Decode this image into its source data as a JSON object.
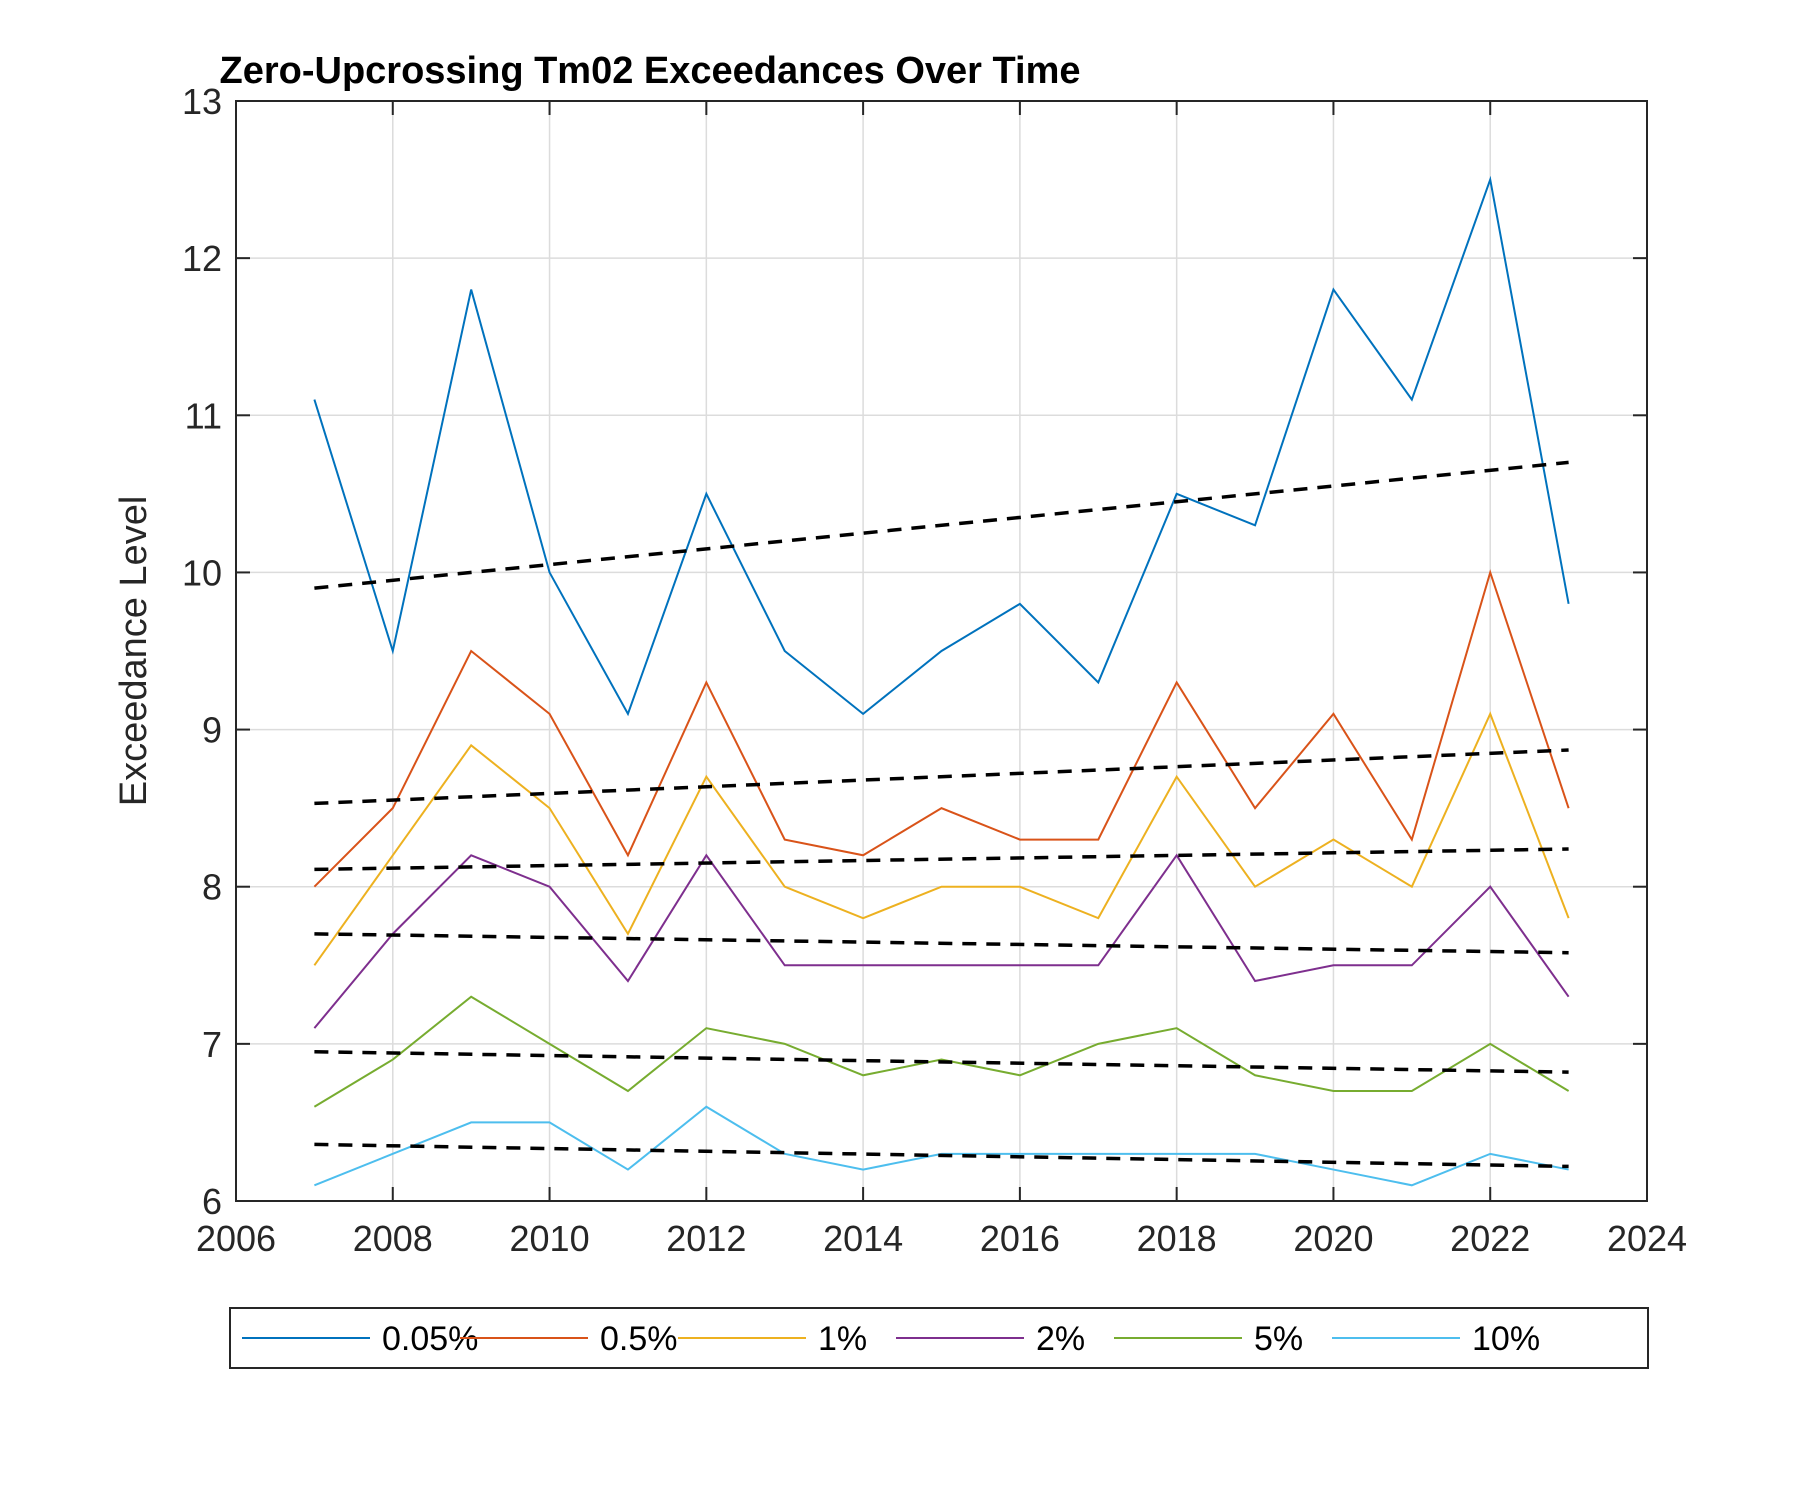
{
  "chart_data": {
    "type": "line",
    "title": "Zero-Upcrossing Tm02 Exceedances Over Time",
    "xlabel": "",
    "ylabel": "Exceedance Level",
    "xlim": [
      2006,
      2024
    ],
    "ylim": [
      6,
      13
    ],
    "x_ticks": [
      "2006",
      "2008",
      "2010",
      "2012",
      "2014",
      "2016",
      "2018",
      "2020",
      "2022",
      "2024"
    ],
    "y_ticks": [
      "6",
      "7",
      "8",
      "9",
      "10",
      "11",
      "12",
      "13"
    ],
    "grid": true,
    "legend_position": "bottom",
    "x": [
      2007,
      2008,
      2009,
      2010,
      2011,
      2012,
      2013,
      2014,
      2015,
      2016,
      2017,
      2018,
      2019,
      2020,
      2021,
      2022,
      2023
    ],
    "series": [
      {
        "name": "0.05%",
        "color": "#0072BD",
        "values": [
          11.1,
          9.5,
          11.8,
          10.0,
          9.1,
          10.5,
          9.5,
          9.1,
          9.5,
          9.8,
          9.3,
          10.5,
          10.3,
          11.8,
          11.1,
          12.5,
          9.8
        ],
        "trend": [
          9.9,
          10.7
        ]
      },
      {
        "name": "0.5%",
        "color": "#D95319",
        "values": [
          8.0,
          8.5,
          9.5,
          9.1,
          8.2,
          9.3,
          8.3,
          8.2,
          8.5,
          8.3,
          8.3,
          9.3,
          8.5,
          9.1,
          8.3,
          10.0,
          8.5
        ],
        "trend": [
          8.53,
          8.87
        ]
      },
      {
        "name": "1%",
        "color": "#EDB120",
        "values": [
          7.5,
          8.2,
          8.9,
          8.5,
          7.7,
          8.7,
          8.0,
          7.8,
          8.0,
          8.0,
          7.8,
          8.7,
          8.0,
          8.3,
          8.0,
          9.1,
          7.8
        ],
        "trend": [
          8.11,
          8.24
        ]
      },
      {
        "name": "2%",
        "color": "#7E2F8E",
        "values": [
          7.1,
          7.7,
          8.2,
          8.0,
          7.4,
          8.2,
          7.5,
          7.5,
          7.5,
          7.5,
          7.5,
          8.2,
          7.4,
          7.5,
          7.5,
          8.0,
          7.3
        ],
        "trend": [
          7.7,
          7.58
        ]
      },
      {
        "name": "5%",
        "color": "#77AC30",
        "values": [
          6.6,
          6.9,
          7.3,
          7.0,
          6.7,
          7.1,
          7.0,
          6.8,
          6.9,
          6.8,
          7.0,
          7.1,
          6.8,
          6.7,
          6.7,
          7.0,
          6.7
        ],
        "trend": [
          6.95,
          6.82
        ]
      },
      {
        "name": "10%",
        "color": "#4DBEEE",
        "values": [
          6.1,
          6.3,
          6.5,
          6.5,
          6.2,
          6.6,
          6.3,
          6.2,
          6.3,
          6.3,
          6.3,
          6.3,
          6.3,
          6.2,
          6.1,
          6.3,
          6.2
        ],
        "trend": [
          6.36,
          6.22
        ]
      }
    ],
    "trend_style": {
      "color": "#000000",
      "dashed": true
    }
  }
}
